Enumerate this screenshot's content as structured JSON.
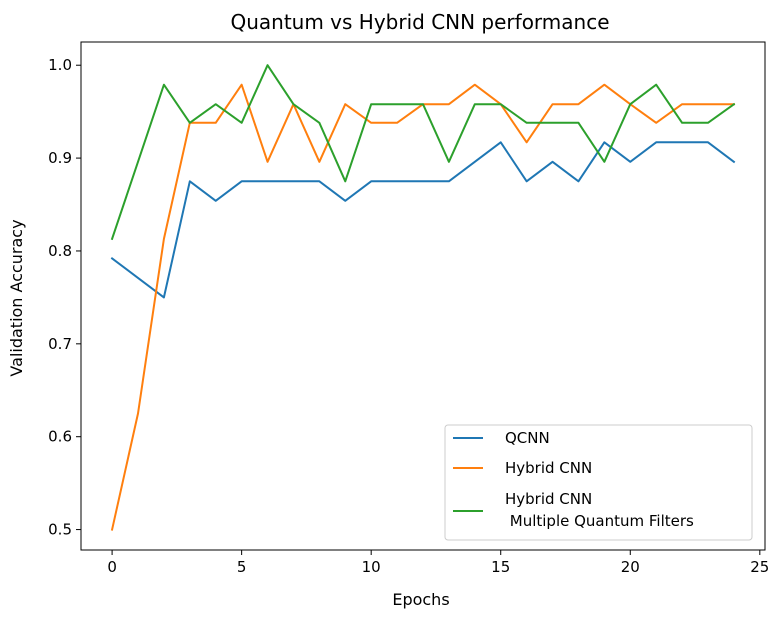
{
  "chart_data": {
    "type": "line",
    "title": "Quantum vs Hybrid CNN performance",
    "xlabel": "Epochs",
    "ylabel": "Validation Accuracy",
    "xlim": [
      -1.2,
      25.2
    ],
    "ylim": [
      0.478,
      1.025
    ],
    "xticks": [
      0,
      5,
      10,
      15,
      20,
      25
    ],
    "yticks": [
      0.5,
      0.6,
      0.7,
      0.8,
      0.9,
      1.0
    ],
    "xtick_labels": [
      "0",
      "5",
      "10",
      "15",
      "20",
      "25"
    ],
    "ytick_labels": [
      "0.5",
      "0.6",
      "0.7",
      "0.8",
      "0.9",
      "1.0"
    ],
    "grid": false,
    "legend_position": "lower-right",
    "x": [
      0,
      1,
      2,
      3,
      4,
      5,
      6,
      7,
      8,
      9,
      10,
      11,
      12,
      13,
      14,
      15,
      16,
      17,
      18,
      19,
      20,
      21,
      22,
      23,
      24
    ],
    "series": [
      {
        "name": "QCNN",
        "color": "#1f77b4",
        "values": [
          0.792,
          0.771,
          0.75,
          0.875,
          0.854,
          0.875,
          0.875,
          0.875,
          0.875,
          0.854,
          0.875,
          0.875,
          0.875,
          0.875,
          0.896,
          0.917,
          0.875,
          0.896,
          0.875,
          0.917,
          0.896,
          0.917,
          0.917,
          0.917,
          0.896
        ]
      },
      {
        "name": "Hybrid CNN",
        "color": "#ff7f0e",
        "values": [
          0.5,
          0.625,
          0.813,
          0.938,
          0.938,
          0.979,
          0.896,
          0.958,
          0.896,
          0.958,
          0.938,
          0.938,
          0.958,
          0.958,
          0.979,
          0.958,
          0.917,
          0.958,
          0.958,
          0.979,
          0.958,
          0.938,
          0.958,
          0.958,
          0.958
        ]
      },
      {
        "name": "Hybrid CNN\n Multiple Quantum Filters",
        "color": "#2ca02c",
        "values": [
          0.813,
          0.896,
          0.979,
          0.938,
          0.958,
          0.938,
          1.0,
          0.958,
          0.938,
          0.875,
          0.958,
          0.958,
          0.958,
          0.896,
          0.958,
          0.958,
          0.938,
          0.938,
          0.938,
          0.896,
          0.958,
          0.979,
          0.938,
          0.938,
          0.958
        ]
      }
    ],
    "legend": {
      "entries": [
        "QCNN",
        "Hybrid CNN",
        "Hybrid CNN",
        " Multiple Quantum Filters"
      ]
    }
  }
}
